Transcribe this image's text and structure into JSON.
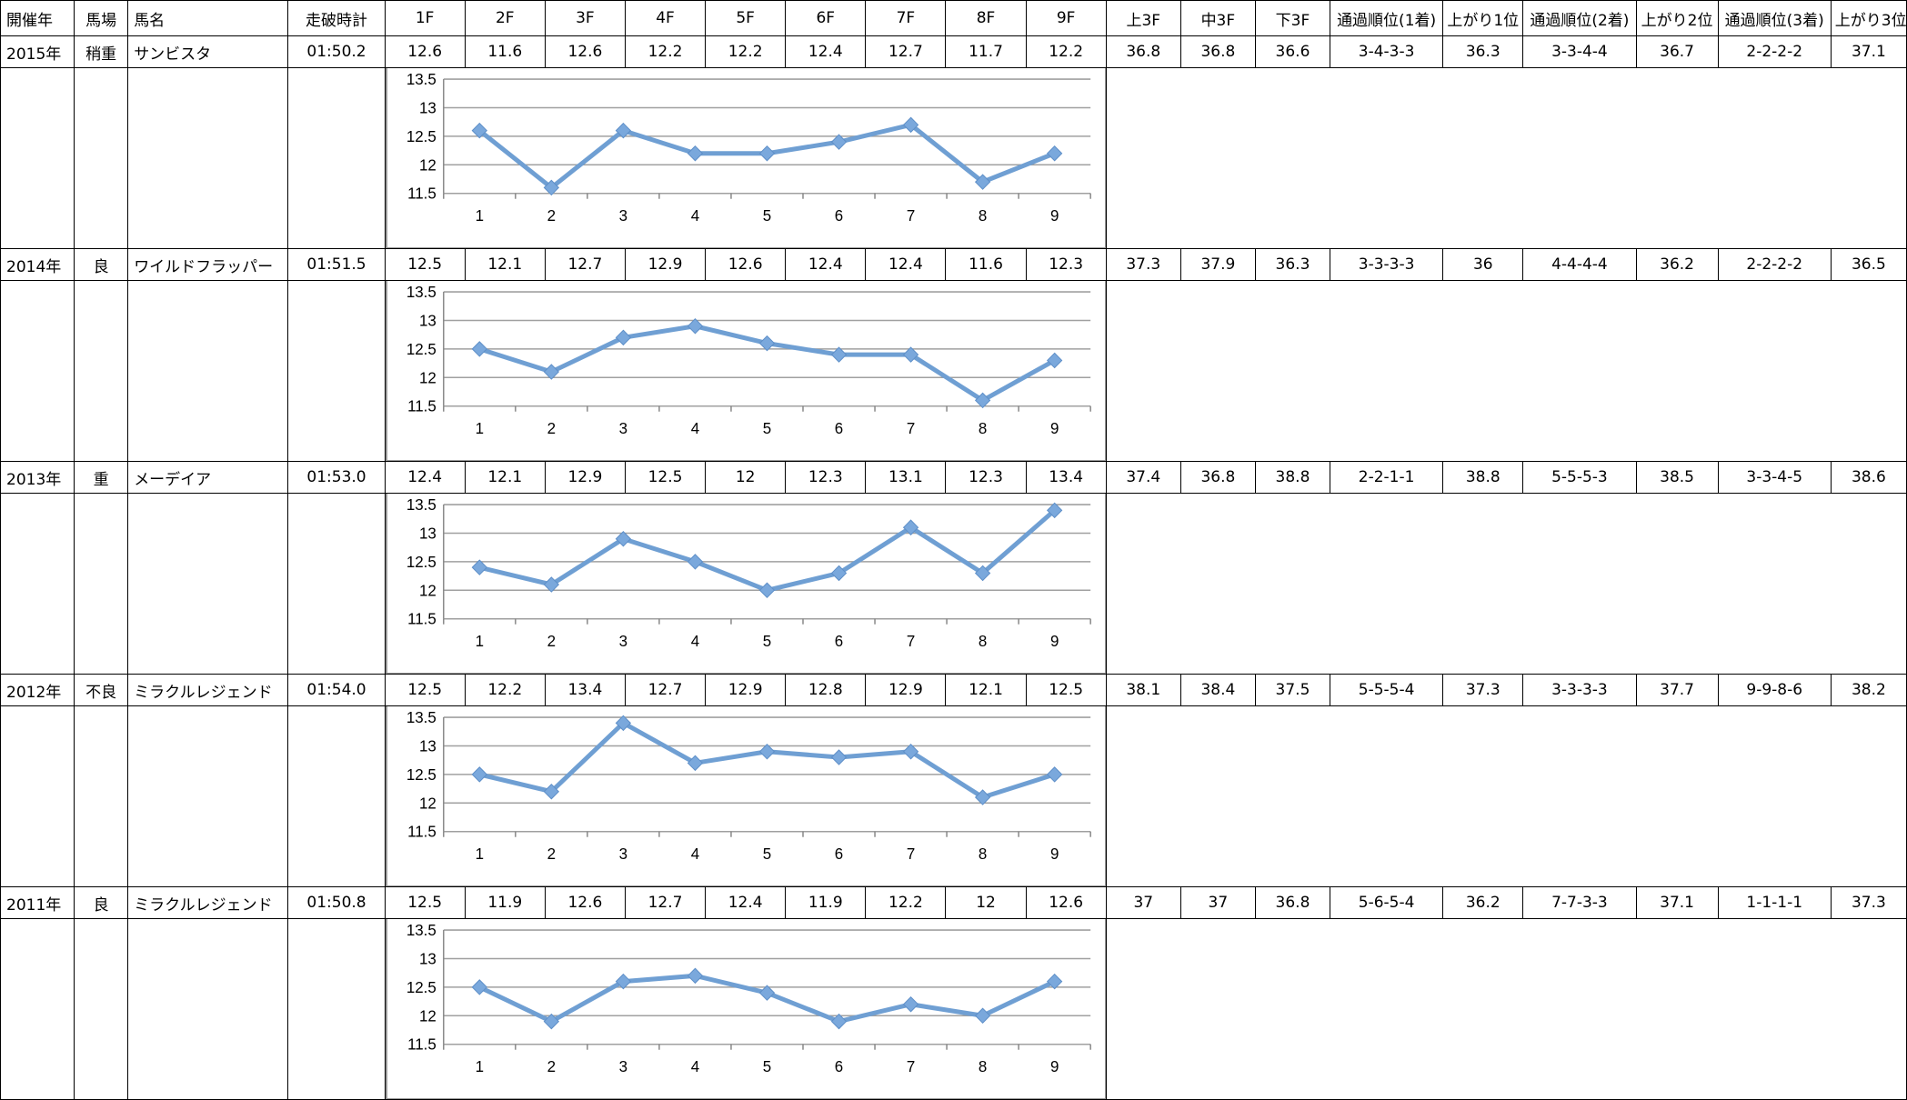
{
  "header": [
    "開催年",
    "馬場",
    "馬名",
    "走破時計",
    "1F",
    "2F",
    "3F",
    "4F",
    "5F",
    "6F",
    "7F",
    "8F",
    "9F",
    "上3F",
    "中3F",
    "下3F",
    "通過順位(1着)",
    "上がり1位",
    "通過順位(2着)",
    "上がり2位",
    "通過順位(3着)",
    "上がり3位"
  ],
  "colors": {
    "line": "#6f9fd3",
    "marker": "#7aa8dc",
    "grid": "#a0a0a0"
  },
  "rows": [
    {
      "year": "2015年",
      "baba": "稍重",
      "horse": "サンビスタ",
      "time": "01:50.2",
      "laps": [
        "12.6",
        "11.6",
        "12.6",
        "12.2",
        "12.2",
        "12.4",
        "12.7",
        "11.7",
        "12.2"
      ],
      "f3": [
        "36.8",
        "36.8",
        "36.6"
      ],
      "p1": "3-4-3-3",
      "a1": "36.3",
      "p2": "3-3-4-4",
      "a2": "36.7",
      "p3": "2-2-2-2",
      "a3": "37.1"
    },
    {
      "year": "2014年",
      "baba": "良",
      "horse": "ワイルドフラッパー",
      "time": "01:51.5",
      "laps": [
        "12.5",
        "12.1",
        "12.7",
        "12.9",
        "12.6",
        "12.4",
        "12.4",
        "11.6",
        "12.3"
      ],
      "f3": [
        "37.3",
        "37.9",
        "36.3"
      ],
      "p1": "3-3-3-3",
      "a1": "36",
      "p2": "4-4-4-4",
      "a2": "36.2",
      "p3": "2-2-2-2",
      "a3": "36.5"
    },
    {
      "year": "2013年",
      "baba": "重",
      "horse": "メーデイア",
      "time": "01:53.0",
      "laps": [
        "12.4",
        "12.1",
        "12.9",
        "12.5",
        "12",
        "12.3",
        "13.1",
        "12.3",
        "13.4"
      ],
      "f3": [
        "37.4",
        "36.8",
        "38.8"
      ],
      "p1": "2-2-1-1",
      "a1": "38.8",
      "p2": "5-5-5-3",
      "a2": "38.5",
      "p3": "3-3-4-5",
      "a3": "38.6"
    },
    {
      "year": "2012年",
      "baba": "不良",
      "horse": "ミラクルレジェンド",
      "time": "01:54.0",
      "laps": [
        "12.5",
        "12.2",
        "13.4",
        "12.7",
        "12.9",
        "12.8",
        "12.9",
        "12.1",
        "12.5"
      ],
      "f3": [
        "38.1",
        "38.4",
        "37.5"
      ],
      "p1": "5-5-5-4",
      "a1": "37.3",
      "p2": "3-3-3-3",
      "a2": "37.7",
      "p3": "9-9-8-6",
      "a3": "38.2"
    },
    {
      "year": "2011年",
      "baba": "良",
      "horse": "ミラクルレジェンド",
      "time": "01:50.8",
      "laps": [
        "12.5",
        "11.9",
        "12.6",
        "12.7",
        "12.4",
        "11.9",
        "12.2",
        "12",
        "12.6"
      ],
      "f3": [
        "37",
        "37",
        "36.8"
      ],
      "p1": "5-6-5-4",
      "a1": "36.2",
      "p2": "7-7-3-3",
      "a2": "37.1",
      "p3": "1-1-1-1",
      "a3": "37.3"
    }
  ],
  "chart_data": [
    {
      "type": "line",
      "x": [
        1,
        2,
        3,
        4,
        5,
        6,
        7,
        8,
        9
      ],
      "series": [
        {
          "values": [
            12.6,
            11.6,
            12.6,
            12.2,
            12.2,
            12.4,
            12.7,
            11.7,
            12.2
          ]
        }
      ],
      "ylim": [
        11.5,
        13.5
      ],
      "yticks": [
        "11.5",
        "12",
        "12.5",
        "13",
        "13.5"
      ],
      "xticks": [
        "1",
        "2",
        "3",
        "4",
        "5",
        "6",
        "7",
        "8",
        "9"
      ],
      "grid": true
    },
    {
      "type": "line",
      "x": [
        1,
        2,
        3,
        4,
        5,
        6,
        7,
        8,
        9
      ],
      "series": [
        {
          "values": [
            12.5,
            12.1,
            12.7,
            12.9,
            12.6,
            12.4,
            12.4,
            11.6,
            12.3
          ]
        }
      ],
      "ylim": [
        11.5,
        13.5
      ],
      "yticks": [
        "11.5",
        "12",
        "12.5",
        "13",
        "13.5"
      ],
      "xticks": [
        "1",
        "2",
        "3",
        "4",
        "5",
        "6",
        "7",
        "8",
        "9"
      ],
      "grid": true
    },
    {
      "type": "line",
      "x": [
        1,
        2,
        3,
        4,
        5,
        6,
        7,
        8,
        9
      ],
      "series": [
        {
          "values": [
            12.4,
            12.1,
            12.9,
            12.5,
            12,
            12.3,
            13.1,
            12.3,
            13.4
          ]
        }
      ],
      "ylim": [
        11.5,
        13.5
      ],
      "yticks": [
        "11.5",
        "12",
        "12.5",
        "13",
        "13.5"
      ],
      "xticks": [
        "1",
        "2",
        "3",
        "4",
        "5",
        "6",
        "7",
        "8",
        "9"
      ],
      "grid": true
    },
    {
      "type": "line",
      "x": [
        1,
        2,
        3,
        4,
        5,
        6,
        7,
        8,
        9
      ],
      "series": [
        {
          "values": [
            12.5,
            12.2,
            13.4,
            12.7,
            12.9,
            12.8,
            12.9,
            12.1,
            12.5
          ]
        }
      ],
      "ylim": [
        11.5,
        13.5
      ],
      "yticks": [
        "11.5",
        "12",
        "12.5",
        "13",
        "13.5"
      ],
      "xticks": [
        "1",
        "2",
        "3",
        "4",
        "5",
        "6",
        "7",
        "8",
        "9"
      ],
      "grid": true
    },
    {
      "type": "line",
      "x": [
        1,
        2,
        3,
        4,
        5,
        6,
        7,
        8,
        9
      ],
      "series": [
        {
          "values": [
            12.5,
            11.9,
            12.6,
            12.7,
            12.4,
            11.9,
            12.2,
            12,
            12.6
          ]
        }
      ],
      "ylim": [
        11.5,
        13.5
      ],
      "yticks": [
        "11.5",
        "12",
        "12.5",
        "13",
        "13.5"
      ],
      "xticks": [
        "1",
        "2",
        "3",
        "4",
        "5",
        "6",
        "7",
        "8",
        "9"
      ],
      "grid": true
    }
  ]
}
